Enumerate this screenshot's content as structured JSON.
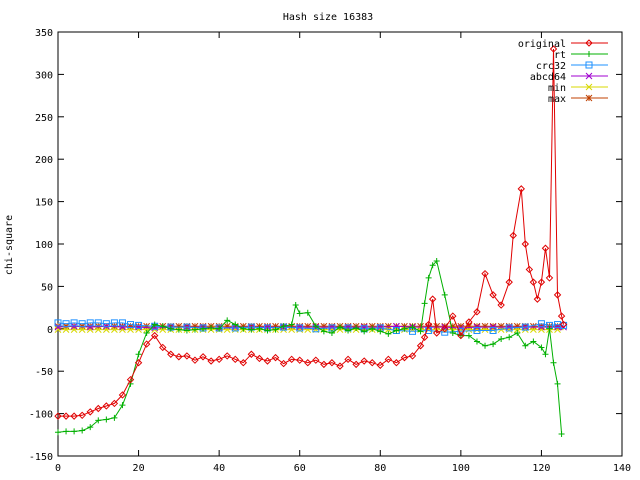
{
  "chart_data": {
    "type": "line",
    "title": "Hash size 16383",
    "xlabel": "",
    "ylabel": "chi-square",
    "xlim": [
      0,
      140
    ],
    "ylim": [
      -150,
      350
    ],
    "xticks": [
      0,
      20,
      40,
      60,
      80,
      100,
      120,
      140
    ],
    "yticks": [
      -150,
      -100,
      -50,
      0,
      50,
      100,
      150,
      200,
      250,
      300,
      350
    ],
    "grid": false,
    "legend_position": "top-right",
    "series": [
      {
        "name": "original",
        "color": "#e00000",
        "marker": "diamond",
        "points": [
          [
            0,
            -103
          ],
          [
            2,
            -103
          ],
          [
            4,
            -103
          ],
          [
            6,
            -102
          ],
          [
            8,
            -98
          ],
          [
            10,
            -94
          ],
          [
            12,
            -91
          ],
          [
            14,
            -88
          ],
          [
            16,
            -78
          ],
          [
            18,
            -60
          ],
          [
            20,
            -40
          ],
          [
            22,
            -18
          ],
          [
            24,
            -8
          ],
          [
            26,
            -22
          ],
          [
            28,
            -30
          ],
          [
            30,
            -33
          ],
          [
            32,
            -32
          ],
          [
            34,
            -37
          ],
          [
            36,
            -33
          ],
          [
            38,
            -38
          ],
          [
            40,
            -36
          ],
          [
            42,
            -32
          ],
          [
            44,
            -36
          ],
          [
            46,
            -40
          ],
          [
            48,
            -30
          ],
          [
            50,
            -35
          ],
          [
            52,
            -38
          ],
          [
            54,
            -34
          ],
          [
            56,
            -41
          ],
          [
            58,
            -36
          ],
          [
            60,
            -37
          ],
          [
            62,
            -40
          ],
          [
            64,
            -37
          ],
          [
            66,
            -42
          ],
          [
            68,
            -40
          ],
          [
            70,
            -44
          ],
          [
            72,
            -36
          ],
          [
            74,
            -42
          ],
          [
            76,
            -38
          ],
          [
            78,
            -40
          ],
          [
            80,
            -43
          ],
          [
            82,
            -36
          ],
          [
            84,
            -40
          ],
          [
            86,
            -34
          ],
          [
            88,
            -32
          ],
          [
            90,
            -20
          ],
          [
            91,
            -10
          ],
          [
            92,
            5
          ],
          [
            93,
            35
          ],
          [
            94,
            -5
          ],
          [
            96,
            0
          ],
          [
            98,
            15
          ],
          [
            100,
            -8
          ],
          [
            102,
            8
          ],
          [
            104,
            20
          ],
          [
            106,
            65
          ],
          [
            108,
            40
          ],
          [
            110,
            28
          ],
          [
            112,
            55
          ],
          [
            113,
            110
          ],
          [
            115,
            165
          ],
          [
            116,
            100
          ],
          [
            117,
            70
          ],
          [
            118,
            55
          ],
          [
            119,
            35
          ],
          [
            120,
            55
          ],
          [
            121,
            95
          ],
          [
            122,
            60
          ],
          [
            123,
            330
          ],
          [
            124,
            40
          ],
          [
            125,
            15
          ],
          [
            125.5,
            5
          ]
        ]
      },
      {
        "name": "rt",
        "color": "#00b000",
        "marker": "plus",
        "points": [
          [
            0,
            -122
          ],
          [
            2,
            -121
          ],
          [
            4,
            -121
          ],
          [
            6,
            -120
          ],
          [
            8,
            -116
          ],
          [
            10,
            -108
          ],
          [
            12,
            -107
          ],
          [
            14,
            -105
          ],
          [
            16,
            -90
          ],
          [
            18,
            -65
          ],
          [
            20,
            -30
          ],
          [
            22,
            -5
          ],
          [
            24,
            5
          ],
          [
            26,
            3
          ],
          [
            28,
            0
          ],
          [
            30,
            -1
          ],
          [
            32,
            -2
          ],
          [
            34,
            -1
          ],
          [
            36,
            0
          ],
          [
            38,
            1
          ],
          [
            40,
            0
          ],
          [
            42,
            10
          ],
          [
            44,
            5
          ],
          [
            46,
            0
          ],
          [
            48,
            -1
          ],
          [
            50,
            0
          ],
          [
            52,
            -2
          ],
          [
            54,
            -1
          ],
          [
            56,
            3
          ],
          [
            58,
            5
          ],
          [
            59,
            28
          ],
          [
            60,
            18
          ],
          [
            62,
            19
          ],
          [
            64,
            3
          ],
          [
            66,
            -3
          ],
          [
            68,
            -5
          ],
          [
            70,
            2
          ],
          [
            72,
            -2
          ],
          [
            74,
            1
          ],
          [
            76,
            -3
          ],
          [
            78,
            0
          ],
          [
            80,
            -3
          ],
          [
            82,
            -6
          ],
          [
            84,
            -2
          ],
          [
            86,
            0
          ],
          [
            88,
            2
          ],
          [
            90,
            -3
          ],
          [
            91,
            30
          ],
          [
            92,
            60
          ],
          [
            93,
            75
          ],
          [
            94,
            80
          ],
          [
            96,
            40
          ],
          [
            98,
            -5
          ],
          [
            100,
            -8
          ],
          [
            102,
            -8
          ],
          [
            104,
            -15
          ],
          [
            106,
            -20
          ],
          [
            108,
            -18
          ],
          [
            110,
            -12
          ],
          [
            112,
            -10
          ],
          [
            114,
            -5
          ],
          [
            116,
            -20
          ],
          [
            118,
            -15
          ],
          [
            120,
            -22
          ],
          [
            121,
            -30
          ],
          [
            122,
            0
          ],
          [
            123,
            -40
          ],
          [
            124,
            -65
          ],
          [
            125,
            -124
          ]
        ]
      },
      {
        "name": "crc32",
        "color": "#1e90ff",
        "marker": "square",
        "points": [
          [
            0,
            7
          ],
          [
            2,
            6
          ],
          [
            4,
            7
          ],
          [
            6,
            6
          ],
          [
            8,
            7
          ],
          [
            10,
            7
          ],
          [
            12,
            6
          ],
          [
            14,
            7
          ],
          [
            16,
            7
          ],
          [
            18,
            5
          ],
          [
            20,
            4
          ],
          [
            24,
            3
          ],
          [
            28,
            2
          ],
          [
            32,
            2
          ],
          [
            36,
            1
          ],
          [
            40,
            1
          ],
          [
            44,
            1
          ],
          [
            48,
            2
          ],
          [
            52,
            1
          ],
          [
            56,
            2
          ],
          [
            60,
            1
          ],
          [
            64,
            0
          ],
          [
            68,
            1
          ],
          [
            72,
            1
          ],
          [
            76,
            0
          ],
          [
            80,
            1
          ],
          [
            84,
            -2
          ],
          [
            88,
            -3
          ],
          [
            92,
            -2
          ],
          [
            96,
            -4
          ],
          [
            100,
            -3
          ],
          [
            104,
            -2
          ],
          [
            108,
            -2
          ],
          [
            112,
            1
          ],
          [
            116,
            2
          ],
          [
            120,
            6
          ],
          [
            122,
            4
          ],
          [
            124,
            5
          ],
          [
            125.5,
            4
          ]
        ]
      },
      {
        "name": "abcd64",
        "color": "#a000d0",
        "marker": "cross",
        "points": [
          [
            0,
            2
          ],
          [
            4,
            3
          ],
          [
            8,
            2
          ],
          [
            12,
            3
          ],
          [
            16,
            2
          ],
          [
            20,
            2
          ],
          [
            24,
            1
          ],
          [
            28,
            2
          ],
          [
            32,
            2
          ],
          [
            36,
            2
          ],
          [
            40,
            1
          ],
          [
            44,
            2
          ],
          [
            48,
            2
          ],
          [
            52,
            2
          ],
          [
            56,
            2
          ],
          [
            60,
            2
          ],
          [
            64,
            2
          ],
          [
            68,
            2
          ],
          [
            72,
            2
          ],
          [
            76,
            2
          ],
          [
            80,
            2
          ],
          [
            84,
            3
          ],
          [
            88,
            2
          ],
          [
            92,
            2
          ],
          [
            96,
            2
          ],
          [
            100,
            1
          ],
          [
            104,
            2
          ],
          [
            108,
            2
          ],
          [
            112,
            2
          ],
          [
            116,
            2
          ],
          [
            120,
            2
          ],
          [
            124,
            2
          ],
          [
            125.5,
            2
          ]
        ]
      },
      {
        "name": "min",
        "color": "#d8d800",
        "marker": "x",
        "points": [
          [
            0,
            -1
          ],
          [
            125.5,
            -1
          ]
        ]
      },
      {
        "name": "max",
        "color": "#c04000",
        "marker": "star",
        "points": [
          [
            0,
            3
          ],
          [
            125.5,
            3
          ]
        ]
      }
    ]
  }
}
